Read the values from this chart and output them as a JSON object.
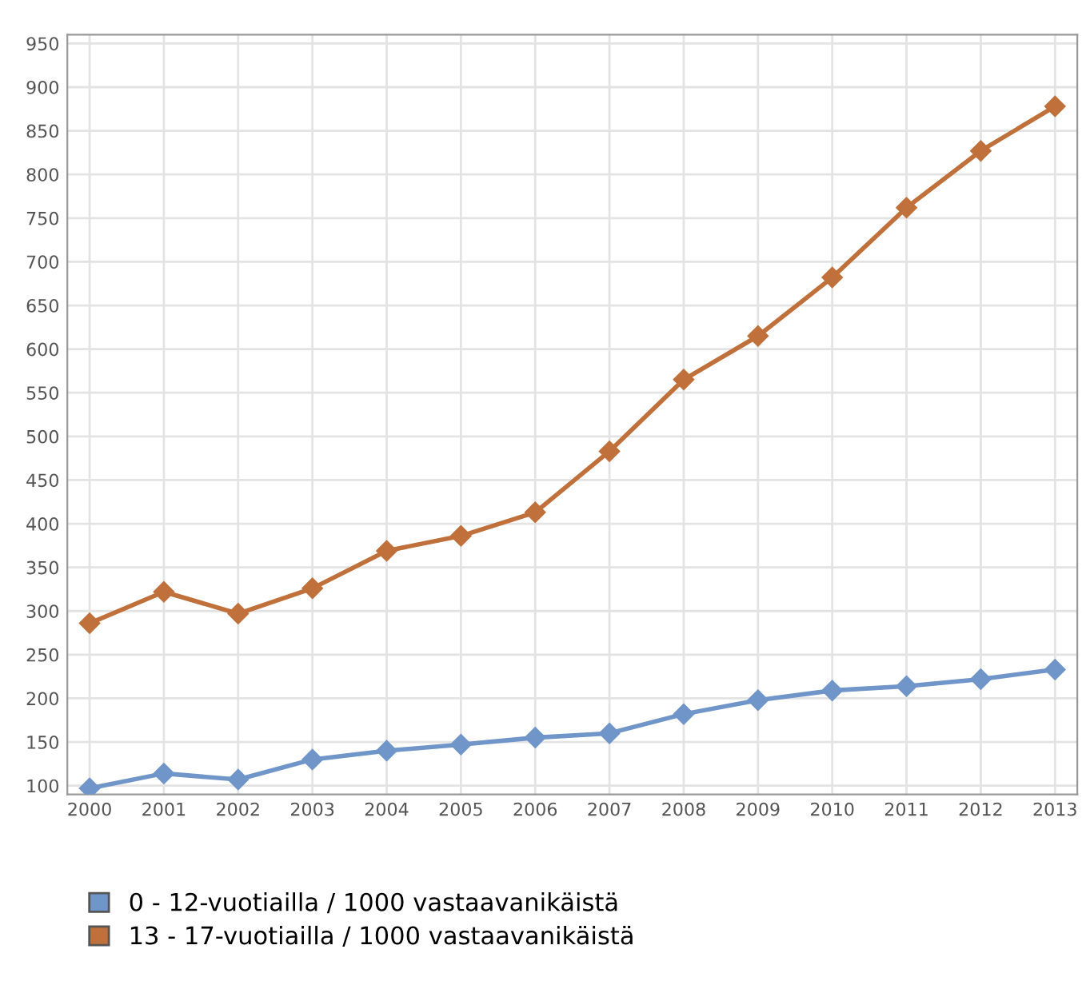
{
  "chart_data": {
    "type": "line",
    "categories": [
      "2000",
      "2001",
      "2002",
      "2003",
      "2004",
      "2005",
      "2006",
      "2007",
      "2008",
      "2009",
      "2010",
      "2011",
      "2012",
      "2013"
    ],
    "series": [
      {
        "name": "0 - 12-vuotiailla / 1000 vastaavanikäistä",
        "color": "#6f95c9",
        "values": [
          97,
          114,
          107,
          130,
          140,
          147,
          155,
          160,
          182,
          198,
          209,
          214,
          222,
          233
        ]
      },
      {
        "name": "13 - 17-vuotiailla / 1000 vastaavanikäistä",
        "color": "#c0703a",
        "values": [
          286,
          322,
          297,
          326,
          369,
          386,
          413,
          483,
          565,
          615,
          682,
          762,
          827,
          878
        ]
      }
    ],
    "ylim": [
      90,
      960
    ],
    "yticks": [
      100,
      150,
      200,
      250,
      300,
      350,
      400,
      450,
      500,
      550,
      600,
      650,
      700,
      750,
      800,
      850,
      900,
      950
    ],
    "grid": true,
    "legend": "bottom left",
    "marker": "diamond",
    "line_style": "solid"
  }
}
